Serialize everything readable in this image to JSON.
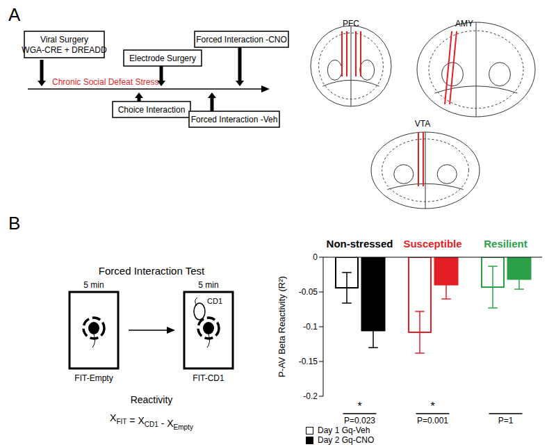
{
  "panel_labels": [
    "A",
    "B"
  ],
  "timeline": {
    "stress_label": "Chronic Social Defeat Stress",
    "stress_color": "#e31e24",
    "events_above": [
      [
        "Viral Surgery",
        "WGA-CRE + DREADD"
      ],
      [
        "Electrode Surgery"
      ],
      [
        "Forced Interaction -CNO"
      ]
    ],
    "events_below": [
      [
        "Choice Interaction"
      ],
      [
        "Forced Interaction -Veh"
      ]
    ]
  },
  "brain_regions": [
    "PFC",
    "AMY",
    "VTA"
  ],
  "schematic": {
    "title": "Forced Interaction Test",
    "durations": [
      "5 min",
      "5 min"
    ],
    "conditions": [
      "FIT-Empty",
      "FIT-CD1"
    ],
    "intruder": "CD1",
    "measure": "Reactivity",
    "formula": [
      {
        "symbol": "X",
        "sub": "FIT"
      },
      "=",
      {
        "symbol": "X",
        "sub": "CD1"
      },
      "-",
      {
        "symbol": "X",
        "sub": "Empty"
      }
    ]
  },
  "chart_data": {
    "type": "bar",
    "categories": [
      "Non-stressed",
      "Susceptible",
      "Resilient"
    ],
    "colors": [
      "#000000",
      "#e31e24",
      "#2ca048"
    ],
    "y_label": "P-AV Beta Reactivity (R²)",
    "ylim": [
      -0.2,
      0
    ],
    "yticks": [
      -0.2,
      -0.15,
      -0.1,
      -0.05,
      0
    ],
    "significance": [
      "*",
      "*",
      null
    ],
    "p_values": [
      "P=0.023",
      "P=0.001",
      "P=1"
    ],
    "legend": "bottom left",
    "series": [
      {
        "name": "Day 1 Gq-Veh",
        "color": "#000000",
        "marker": "open",
        "values": [
          -0.044,
          -0.108,
          -0.043
        ],
        "errors": [
          0.022,
          0.03,
          0.03
        ]
      },
      {
        "name": "Day 2 Gq-CNO",
        "color": "#000000",
        "marker": "filled",
        "values": [
          -0.106,
          -0.04,
          -0.032
        ],
        "errors": [
          0.024,
          0.02,
          0.014
        ]
      }
    ]
  }
}
